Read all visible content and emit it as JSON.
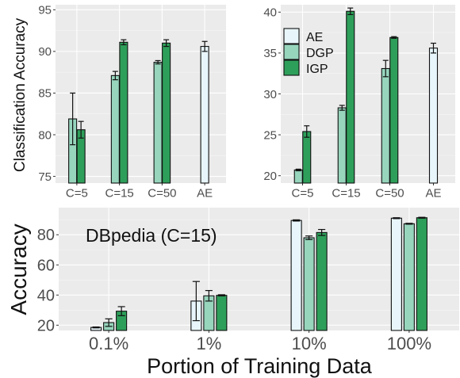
{
  "colors": {
    "AE": "#e8f6fb",
    "DGP": "#97d5bd",
    "IGP": "#2e9f5a",
    "panel": "#ebebeb"
  },
  "chart_data": [
    {
      "id": "top-left",
      "type": "bar",
      "title": "",
      "xlabel": "",
      "ylabel": "Classification Accuracy",
      "ylim": [
        74.2,
        95.6
      ],
      "yticks": [
        75,
        80,
        85,
        90,
        95
      ],
      "categories": [
        "C=5",
        "C=15",
        "C=50",
        "AE"
      ],
      "series": [
        {
          "name": "AE",
          "values": [
            null,
            null,
            null,
            90.6
          ],
          "errors": [
            null,
            null,
            null,
            0.6
          ]
        },
        {
          "name": "DGP",
          "values": [
            81.9,
            87.1,
            88.7,
            null
          ],
          "errors": [
            3.1,
            0.5,
            0.2,
            null
          ]
        },
        {
          "name": "IGP",
          "values": [
            80.6,
            91.1,
            91.0,
            null
          ],
          "errors": [
            1.0,
            0.3,
            0.4,
            null
          ]
        }
      ],
      "legend": "none"
    },
    {
      "id": "top-right",
      "type": "bar",
      "title": "",
      "xlabel": "",
      "ylabel": "",
      "ylim": [
        19.1,
        40.9
      ],
      "yticks": [
        20,
        25,
        30,
        35,
        40
      ],
      "categories": [
        "C=5",
        "C=15",
        "C=50",
        "AE"
      ],
      "series": [
        {
          "name": "AE",
          "values": [
            null,
            null,
            null,
            35.6
          ],
          "errors": [
            null,
            null,
            null,
            0.6
          ]
        },
        {
          "name": "DGP",
          "values": [
            20.7,
            28.3,
            33.1,
            null
          ],
          "errors": [
            0.1,
            0.3,
            1.0,
            null
          ]
        },
        {
          "name": "IGP",
          "values": [
            25.4,
            40.1,
            36.9,
            null
          ],
          "errors": [
            0.7,
            0.4,
            0.1,
            null
          ]
        }
      ],
      "legend": "top-left",
      "legend_entries": [
        "AE",
        "DGP",
        "IGP"
      ]
    },
    {
      "id": "bottom",
      "type": "bar",
      "title": "",
      "annotation": "DBpedia (C=15)",
      "xlabel": "Portion of Training Data",
      "ylabel": "Accuracy",
      "ylim": [
        16.5,
        98.0
      ],
      "yticks": [
        20,
        40,
        60,
        80
      ],
      "categories": [
        "0.1%",
        "1%",
        "10%",
        "100%"
      ],
      "series": [
        {
          "name": "AE",
          "values": [
            18.5,
            36.0,
            89.5,
            91.0
          ],
          "errors": [
            0.3,
            13.0,
            0.4,
            0.3
          ]
        },
        {
          "name": "DGP",
          "values": [
            21.7,
            39.5,
            78.0,
            87.3
          ],
          "errors": [
            2.5,
            3.5,
            1.2,
            0.3
          ]
        },
        {
          "name": "IGP",
          "values": [
            29.3,
            39.8,
            81.5,
            91.3
          ],
          "errors": [
            3.0,
            0.4,
            2.0,
            0.3
          ]
        }
      ],
      "legend": "none"
    }
  ]
}
